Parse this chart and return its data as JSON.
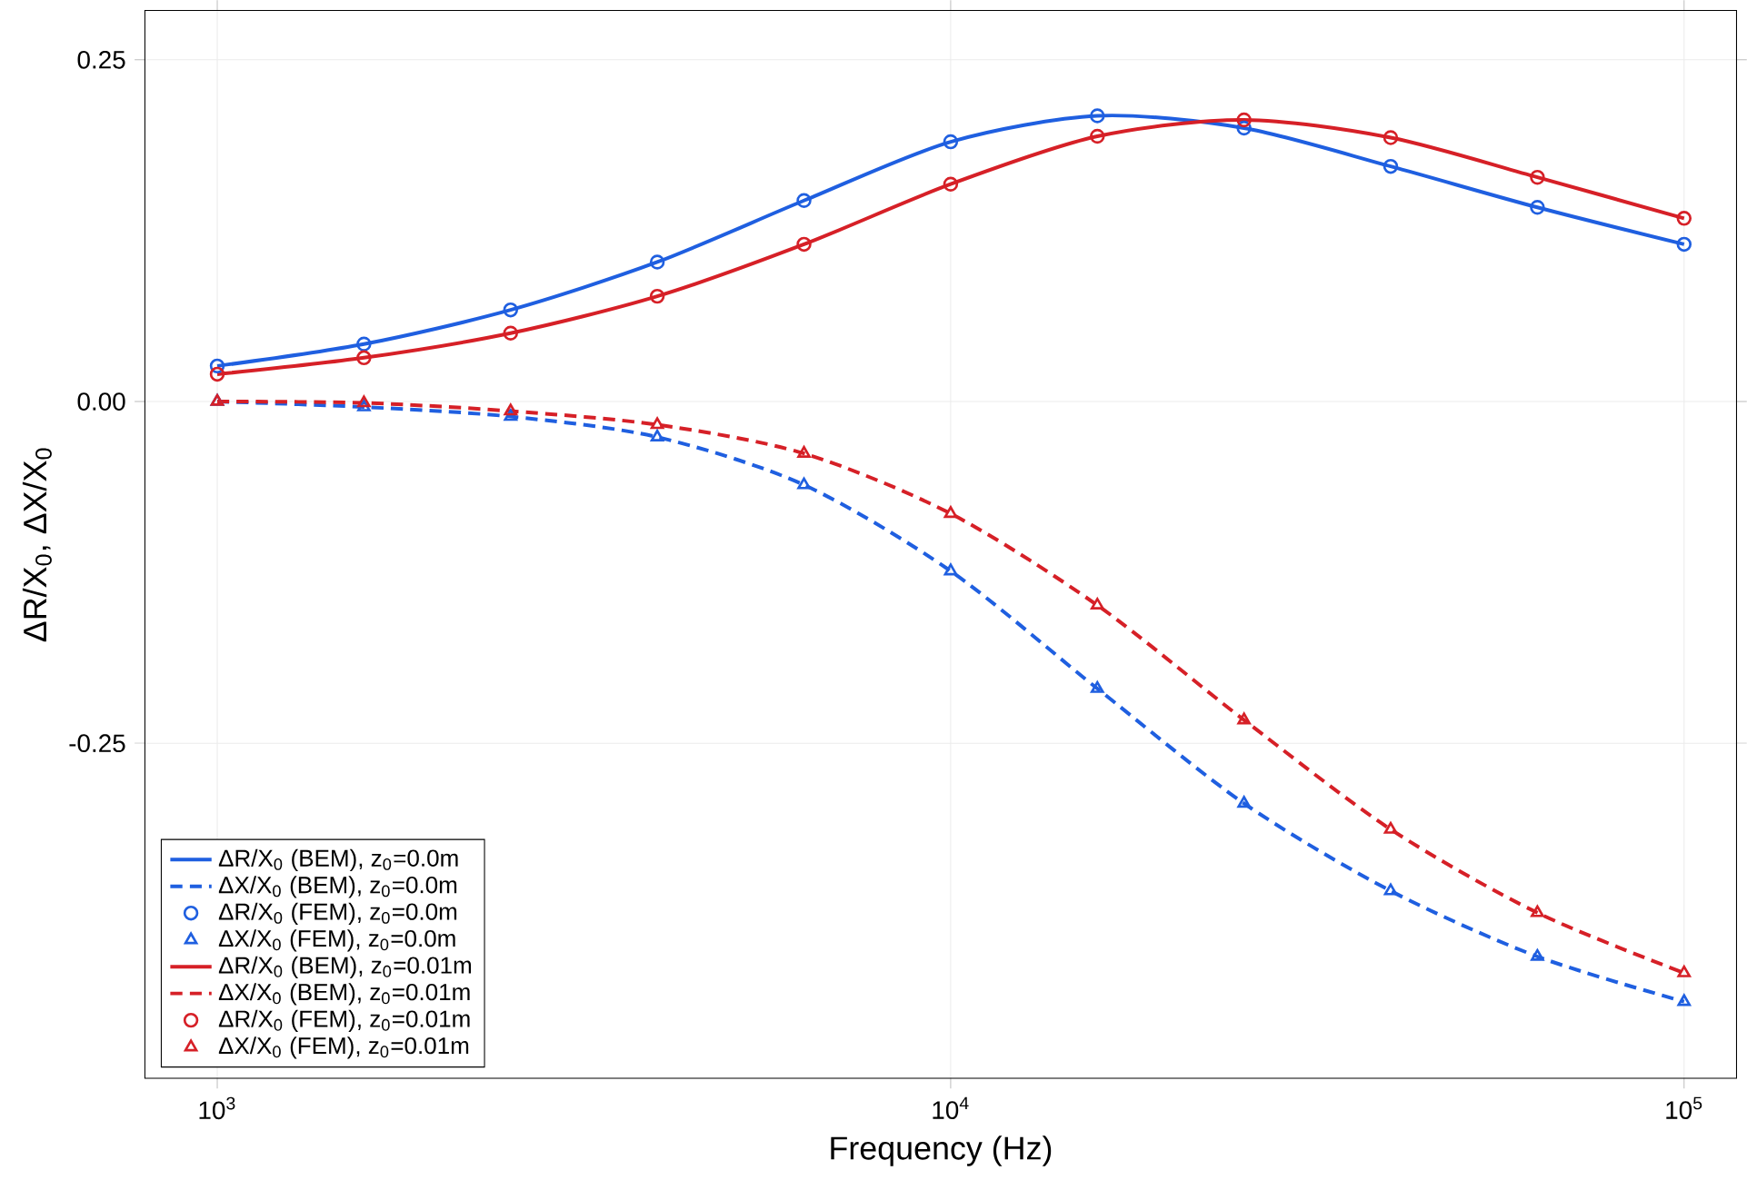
{
  "chart_data": {
    "type": "line",
    "xlabel": "Frequency (Hz)",
    "ylabel": "ΔR/X$_{0}$,  ΔX/X$_{0}$",
    "log": "x",
    "grid": true,
    "legend": "bottom left",
    "xlim": [
      797,
      117900
    ],
    "ylim": [
      -0.495,
      0.286
    ],
    "xticks": [
      {
        "value": 1000,
        "label": "10$^{3}$"
      },
      {
        "value": 10000,
        "label": "10$^{4}$"
      },
      {
        "value": 100000,
        "label": "10$^{5}$"
      }
    ],
    "yticks": [
      {
        "value": 0.25,
        "label": "0.25"
      },
      {
        "value": 0,
        "label": "0.00"
      },
      {
        "value": -0.25,
        "label": "-0.25"
      }
    ],
    "x": [
      1000,
      1585,
      2512,
      3981,
      6310,
      10000,
      15849,
      25119,
      39811,
      63096,
      100000
    ],
    "series": [
      {
        "name": "ΔR/X$_{0}$ (BEM),  z$_{0}$=0.0m",
        "color": "#1f5fe0",
        "line_style": "solid",
        "marker": "none",
        "values": [
          0.026,
          0.042,
          0.067,
          0.102,
          0.147,
          0.19,
          0.209,
          0.2,
          0.172,
          0.142,
          0.115
        ]
      },
      {
        "name": "ΔX/X$_{0}$ (BEM),  z$_{0}$=0.0m",
        "color": "#1f5fe0",
        "line_style": "dashed",
        "marker": "none",
        "values": [
          0.0,
          -0.004,
          -0.011,
          -0.026,
          -0.061,
          -0.124,
          -0.21,
          -0.294,
          -0.358,
          -0.406,
          -0.439
        ]
      },
      {
        "name": "ΔR/X$_{0}$ (FEM),  z$_{0}$=0.0m",
        "type": "scatter",
        "color": "#1f5fe0",
        "marker": "circle",
        "values": [
          0.026,
          0.042,
          0.067,
          0.102,
          0.147,
          0.19,
          0.209,
          0.2,
          0.172,
          0.142,
          0.115
        ]
      },
      {
        "name": "ΔX/X$_{0}$ (FEM),  z$_{0}$=0.0m",
        "type": "scatter",
        "color": "#1f5fe0",
        "marker": "triangle",
        "values": [
          0.0,
          -0.004,
          -0.011,
          -0.026,
          -0.061,
          -0.124,
          -0.21,
          -0.294,
          -0.358,
          -0.406,
          -0.439
        ]
      },
      {
        "name": "ΔR/X$_{0}$ (BEM),  z$_{0}$=0.01m",
        "color": "#d62027",
        "line_style": "solid",
        "marker": "none",
        "values": [
          0.02,
          0.032,
          0.05,
          0.077,
          0.115,
          0.159,
          0.194,
          0.206,
          0.193,
          0.164,
          0.134
        ]
      },
      {
        "name": "ΔX/X$_{0}$ (BEM),  z$_{0}$=0.01m",
        "color": "#d62027",
        "line_style": "dashed",
        "marker": "none",
        "values": [
          0.0,
          -0.001,
          -0.007,
          -0.017,
          -0.038,
          -0.082,
          -0.149,
          -0.233,
          -0.313,
          -0.374,
          -0.418
        ]
      },
      {
        "name": "ΔR/X$_{0}$ (FEM),  z$_{0}$=0.01m",
        "type": "scatter",
        "color": "#d62027",
        "marker": "circle",
        "values": [
          0.02,
          0.032,
          0.05,
          0.077,
          0.115,
          0.159,
          0.194,
          0.206,
          0.193,
          0.164,
          0.134
        ]
      },
      {
        "name": "ΔX/X$_{0}$ (FEM),  z$_{0}$=0.01m",
        "type": "scatter",
        "color": "#d62027",
        "marker": "triangle",
        "values": [
          0.0,
          -0.001,
          -0.007,
          -0.017,
          -0.038,
          -0.082,
          -0.149,
          -0.233,
          -0.313,
          -0.374,
          -0.418
        ]
      }
    ]
  }
}
